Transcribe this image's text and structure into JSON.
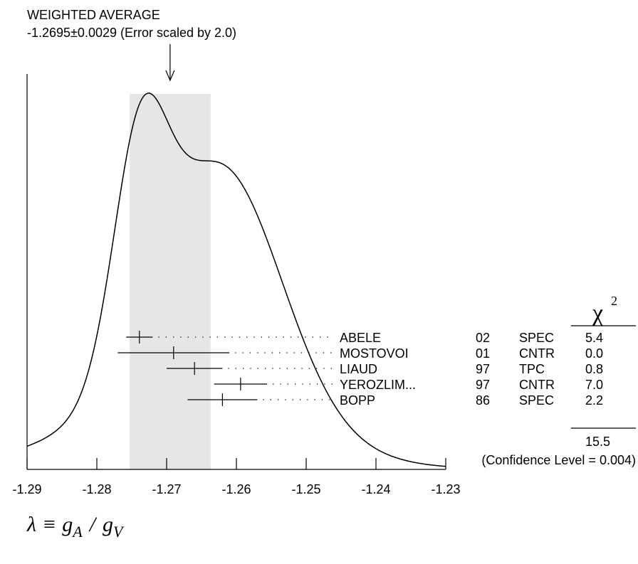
{
  "chart_data": {
    "type": "ideogram",
    "title": "WEIGHTED AVERAGE",
    "subtitle": "-1.2695±0.0029 (Error scaled by 2.0)",
    "weighted_average": {
      "value": -1.2695,
      "error": 0.0029,
      "scale_factor": 2.0
    },
    "xlabel": {
      "lambda": "λ",
      "equiv": "≡",
      "gA_g": "g",
      "gA_sub": "A",
      "slash": "/",
      "gV_g": "g",
      "gV_sub": "V"
    },
    "xlim": [
      -1.29,
      -1.23
    ],
    "x_ticks": [
      -1.29,
      -1.28,
      -1.27,
      -1.26,
      -1.25,
      -1.24,
      -1.23
    ],
    "x_tick_labels": [
      "-1.29",
      "-1.28",
      "-1.27",
      "-1.26",
      "-1.25",
      "-1.24",
      "-1.23"
    ],
    "chi2_header": {
      "symbol": "χ",
      "power": "2"
    },
    "measurements": [
      {
        "name": "ABELE",
        "year": "02",
        "technique": "SPEC",
        "chi2": "5.4",
        "value": -1.2739,
        "error": 0.0019
      },
      {
        "name": "MOSTOVOI",
        "year": "01",
        "technique": "CNTR",
        "chi2": "0.0",
        "value": -1.269,
        "error": 0.008
      },
      {
        "name": "LIAUD",
        "year": "97",
        "technique": "TPC",
        "chi2": "0.8",
        "value": -1.266,
        "error": 0.004
      },
      {
        "name": "YEROZLIM...",
        "year": "97",
        "technique": "CNTR",
        "chi2": "7.0",
        "value": -1.2594,
        "error": 0.0038
      },
      {
        "name": "BOPP",
        "year": "86",
        "technique": "SPEC",
        "chi2": "2.2",
        "value": -1.262,
        "error": 0.005
      }
    ],
    "chi2_total": "15.5",
    "confidence_level_text": "(Confidence Level = 0.004)",
    "curve_peaks": [
      {
        "x": -1.274,
        "height": 1.0
      },
      {
        "x": -1.262,
        "height": 0.47
      }
    ],
    "band_color": "#e6e6e6",
    "line_color": "#000000"
  }
}
